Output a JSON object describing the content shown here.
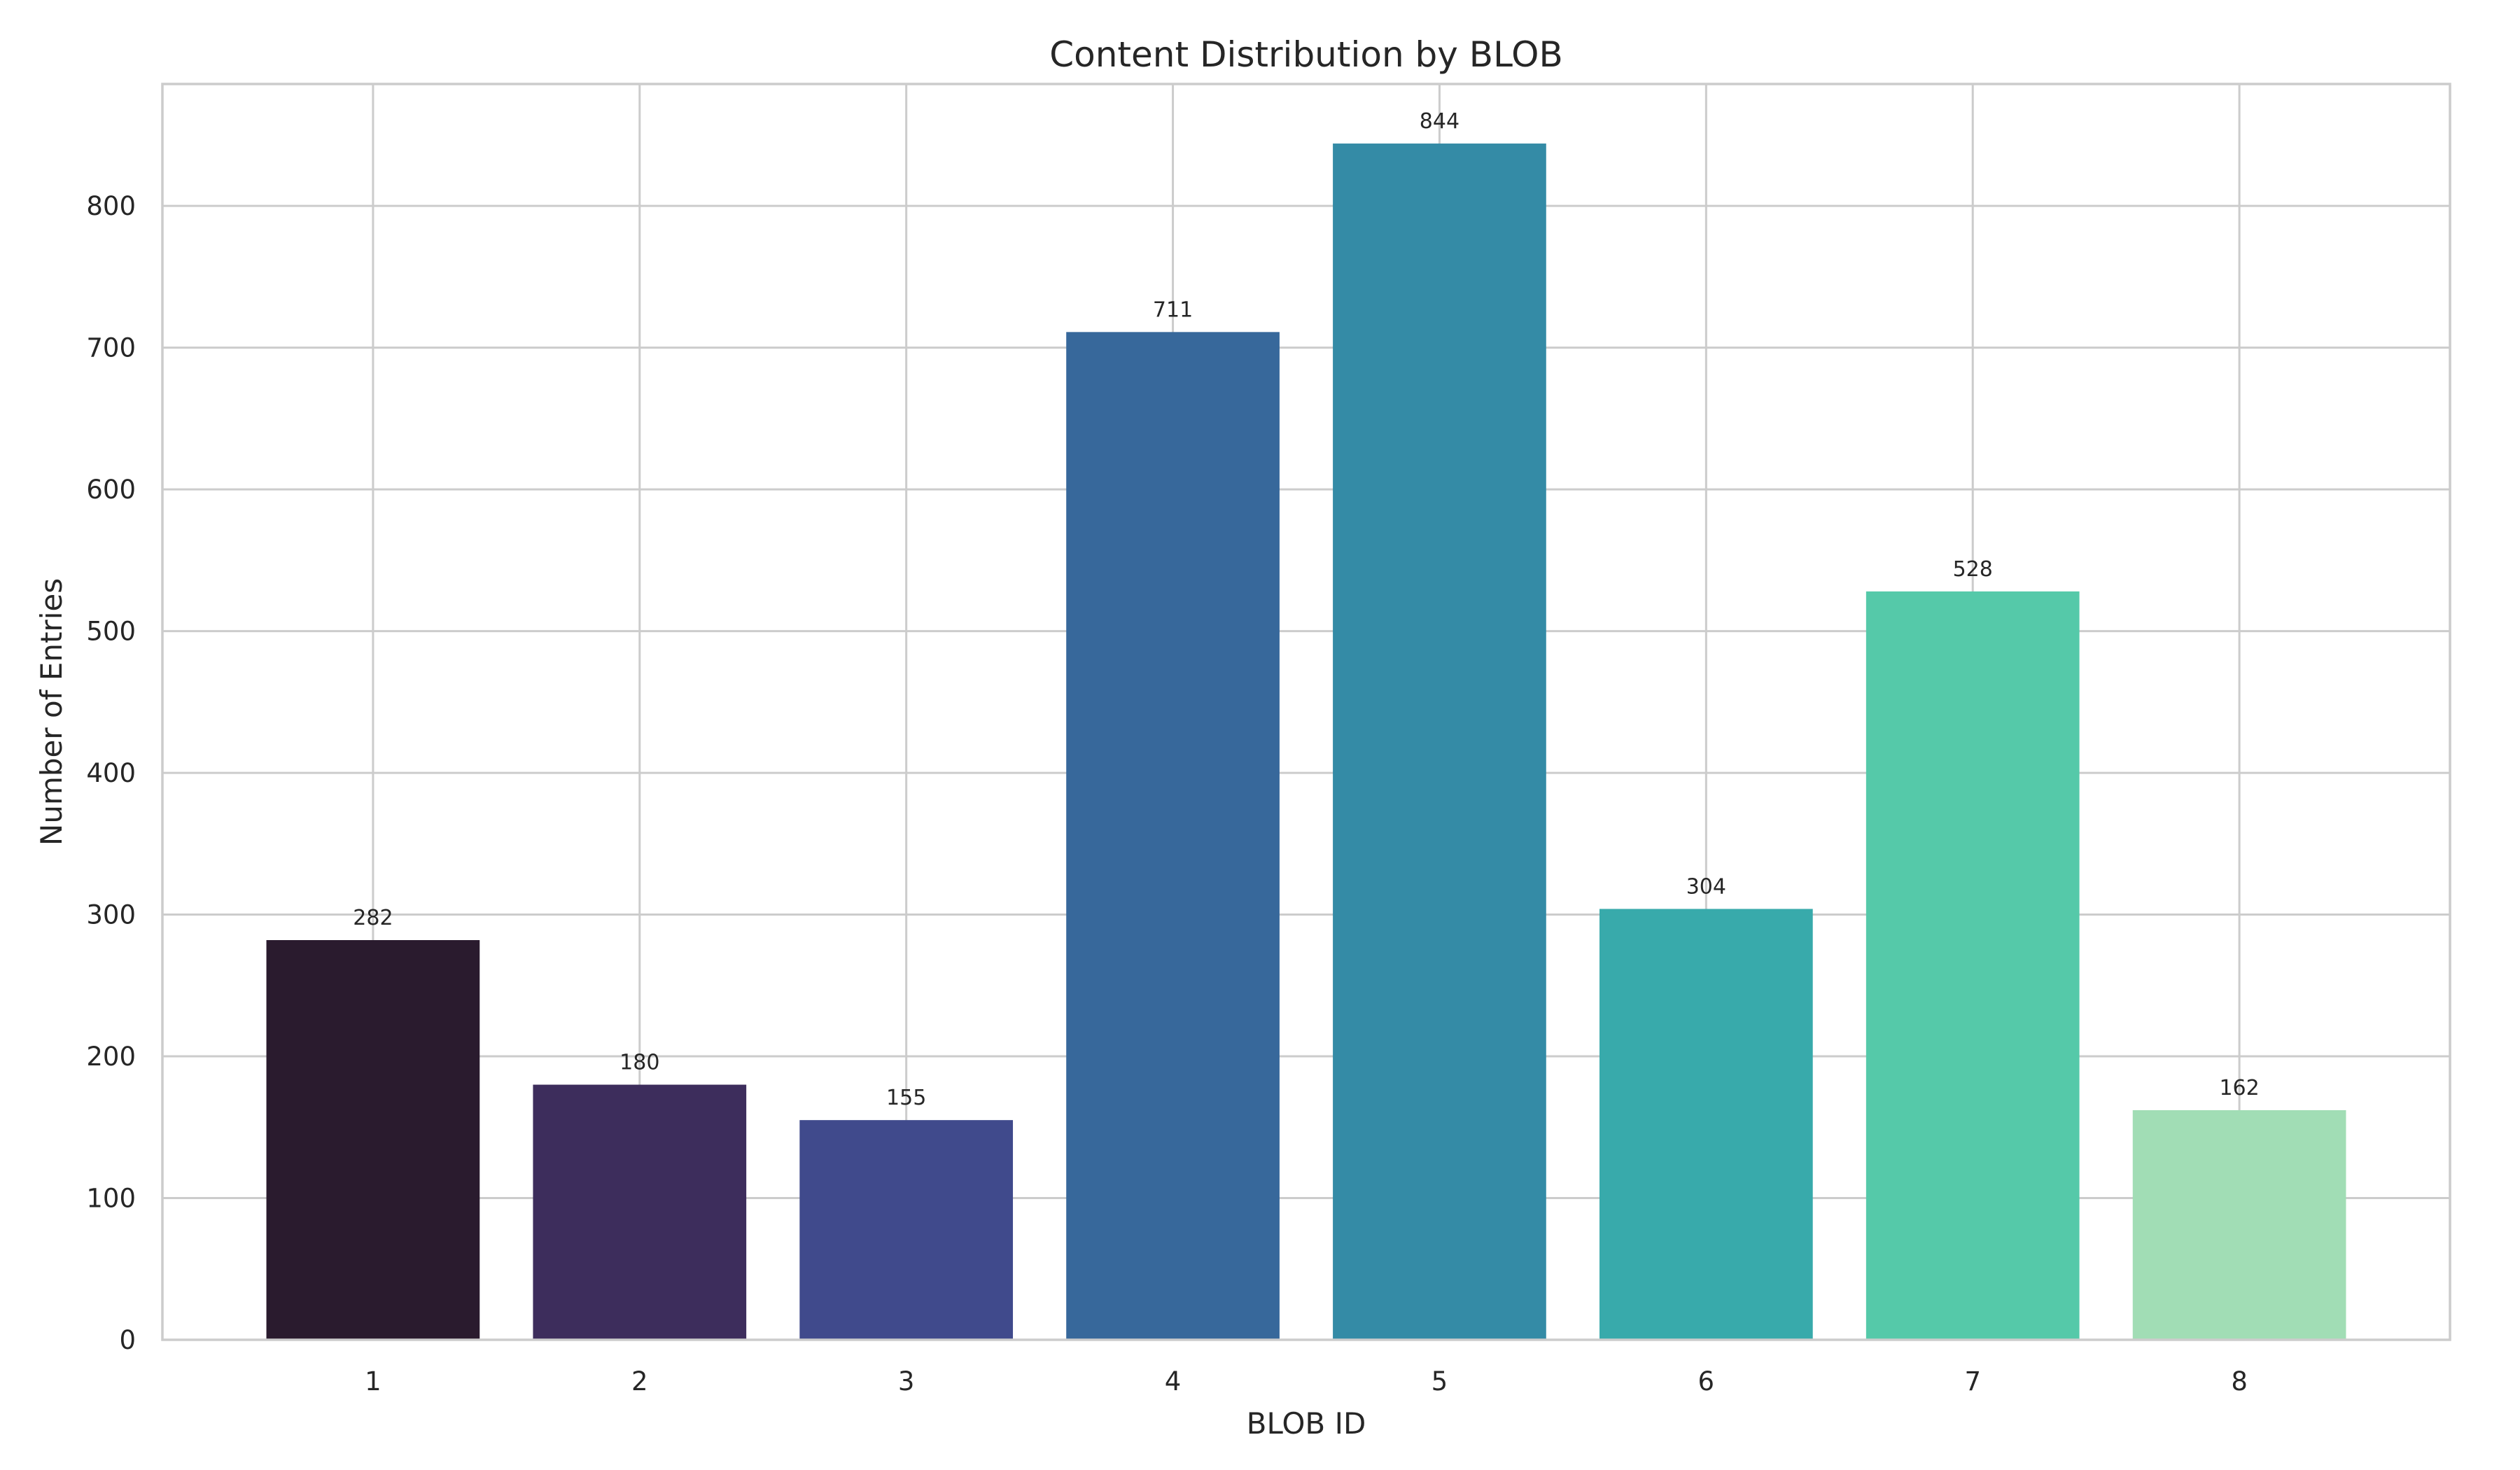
{
  "chart_data": {
    "type": "bar",
    "title": "Content Distribution by BLOB",
    "xlabel": "BLOB ID",
    "ylabel": "Number of Entries",
    "categories": [
      "1",
      "2",
      "3",
      "4",
      "5",
      "6",
      "7",
      "8"
    ],
    "values": [
      282,
      180,
      155,
      711,
      844,
      304,
      528,
      162
    ],
    "data_labels": [
      "282",
      "180",
      "155",
      "711",
      "844",
      "304",
      "528",
      "162"
    ],
    "ylim": [
      0,
      886
    ],
    "yticks": [
      0,
      100,
      200,
      300,
      400,
      500,
      600,
      700,
      800
    ],
    "ytick_labels": [
      "0",
      "100",
      "200",
      "300",
      "400",
      "500",
      "600",
      "700",
      "800"
    ],
    "grid": true,
    "legend": "none",
    "colors": [
      "#2a1b2e",
      "#3d2d5c",
      "#404a8c",
      "#37689b",
      "#348ba6",
      "#38aaab",
      "#55c9a9",
      "#a1ddb5"
    ],
    "gridline_color": "#cccccc",
    "text_color": "#262626"
  }
}
